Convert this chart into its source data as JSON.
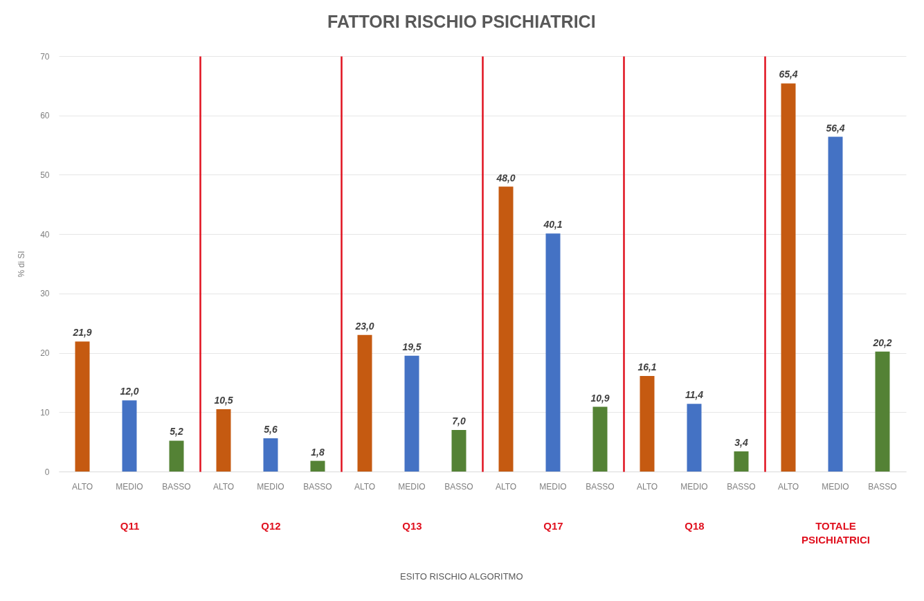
{
  "chart_data": [
    {
      "type": "bar",
      "ylabel": "% di SI",
      "xlabel": "Q11",
      "annotations": [
        "ESITO RISCHIO ALGORITMO"
      ],
      "categories": [
        "ALTO",
        "MEDIO",
        "BASSO"
      ],
      "values": [
        21.9,
        12.0,
        5.2
      ],
      "value_labels": [
        "21,9",
        "12,0",
        "5,2"
      ],
      "colors": [
        "#c55a11",
        "#4472c4",
        "#548235"
      ],
      "ylim": [
        0,
        70
      ],
      "yticks": [
        0,
        10,
        20,
        30,
        40,
        50,
        60,
        70
      ],
      "grid": "y"
    },
    {
      "type": "bar",
      "xlabel": "Q12",
      "categories": [
        "ALTO",
        "MEDIO",
        "BASSO"
      ],
      "values": [
        10.5,
        5.6,
        1.8
      ],
      "value_labels": [
        "10,5",
        "5,6",
        "1,8"
      ],
      "colors": [
        "#c55a11",
        "#4472c4",
        "#548235"
      ],
      "ylim": [
        0,
        70
      ],
      "yticks": [
        0,
        10,
        20,
        30,
        40,
        50,
        60,
        70
      ],
      "grid": "y",
      "tick_labels": "x"
    },
    {
      "type": "bar",
      "title": "FATTORI RISCHIO PSICHIATRICI",
      "xlabel": "Q13",
      "categories": [
        "ALTO",
        "MEDIO",
        "BASSO"
      ],
      "values": [
        23.0,
        19.5,
        7.0
      ],
      "value_labels": [
        "23,0",
        "19,5",
        "7,0"
      ],
      "colors": [
        "#c55a11",
        "#4472c4",
        "#548235"
      ],
      "ylim": [
        0,
        70
      ],
      "yticks": [
        0,
        10,
        20,
        30,
        40,
        50,
        60,
        70
      ],
      "grid": "y",
      "tick_labels": "x"
    },
    {
      "type": "bar",
      "xlabel": "Q17",
      "categories": [
        "ALTO",
        "MEDIO",
        "BASSO"
      ],
      "values": [
        48.0,
        40.1,
        10.9
      ],
      "value_labels": [
        "48,0",
        "40,1",
        "10,9"
      ],
      "colors": [
        "#c55a11",
        "#4472c4",
        "#548235"
      ],
      "ylim": [
        0,
        70
      ],
      "yticks": [
        0,
        10,
        20,
        30,
        40,
        50,
        60,
        70
      ],
      "grid": "y",
      "tick_labels": "x"
    },
    {
      "type": "bar",
      "xlabel": "Q18",
      "categories": [
        "ALTO",
        "MEDIO",
        "BASSO"
      ],
      "values": [
        16.1,
        11.4,
        3.4
      ],
      "value_labels": [
        "16,1",
        "11,4",
        "3,4"
      ],
      "colors": [
        "#c55a11",
        "#4472c4",
        "#548235"
      ],
      "ylim": [
        0,
        70
      ],
      "yticks": [
        0,
        10,
        20,
        30,
        40,
        50,
        60,
        70
      ],
      "grid": "y",
      "tick_labels": "x"
    },
    {
      "type": "bar",
      "xlabel": "TOTALE PSICHIATRICI",
      "categories": [
        "ALTO",
        "MEDIO",
        "BASSO"
      ],
      "values": [
        65.4,
        56.4,
        20.2
      ],
      "value_labels": [
        "65,4",
        "56,4",
        "20,2"
      ],
      "colors": [
        "#c55a11",
        "#4472c4",
        "#548235"
      ],
      "ylim": [
        0,
        70
      ],
      "yticks": [
        0,
        10,
        20,
        30,
        40,
        50,
        60,
        70
      ],
      "grid": "y",
      "tick_labels": "x"
    }
  ]
}
